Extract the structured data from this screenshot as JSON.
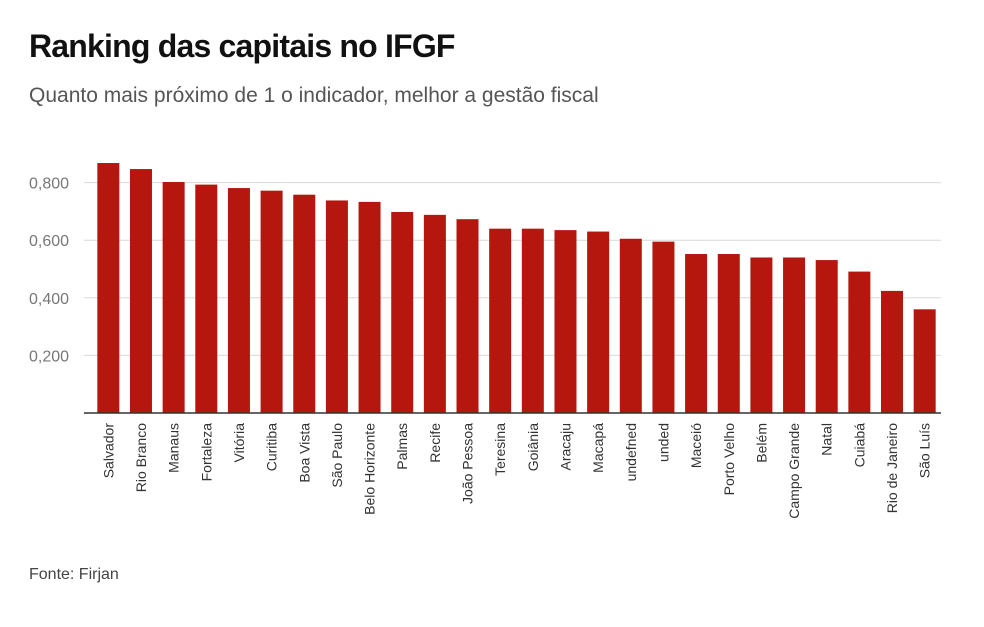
{
  "title": "Ranking das capitais no IFGF",
  "subtitle": "Quanto mais próximo de 1 o indicador, melhor a gestão fiscal",
  "source": "Fonte: Firjan",
  "colors": {
    "bar": "#b5170e",
    "grid": "#d9d9d9",
    "axis": "#333333"
  },
  "chart_data": {
    "type": "bar",
    "categories": [
      "Salvador",
      "Rio Branco",
      "Manaus",
      "Fortaleza",
      "Vitória",
      "Curitiba",
      "Boa Vista",
      "São Paulo",
      "Belo Horizonte",
      "Palmas",
      "Recife",
      "João Pessoa",
      "Teresina",
      "Goiânia",
      "Aracaju",
      "Macapá",
      "undefned",
      "unded",
      "Maceió",
      "Porto Velho",
      "Belém",
      "Campo Grande",
      "Natal",
      "Cuiabá",
      "Rio de Janeiro",
      "São Luís"
    ],
    "values": [
      0.868,
      0.847,
      0.802,
      0.793,
      0.781,
      0.772,
      0.758,
      0.738,
      0.733,
      0.698,
      0.688,
      0.673,
      0.64,
      0.64,
      0.635,
      0.63,
      0.605,
      0.595,
      0.552,
      0.552,
      0.54,
      0.54,
      0.531,
      0.491,
      0.424,
      0.36
    ],
    "yticks": [
      "0,200",
      "0,400",
      "0,600",
      "0,800"
    ],
    "ytick_values": [
      0.2,
      0.4,
      0.6,
      0.8
    ],
    "ylim": [
      0,
      1
    ],
    "grid": true
  }
}
